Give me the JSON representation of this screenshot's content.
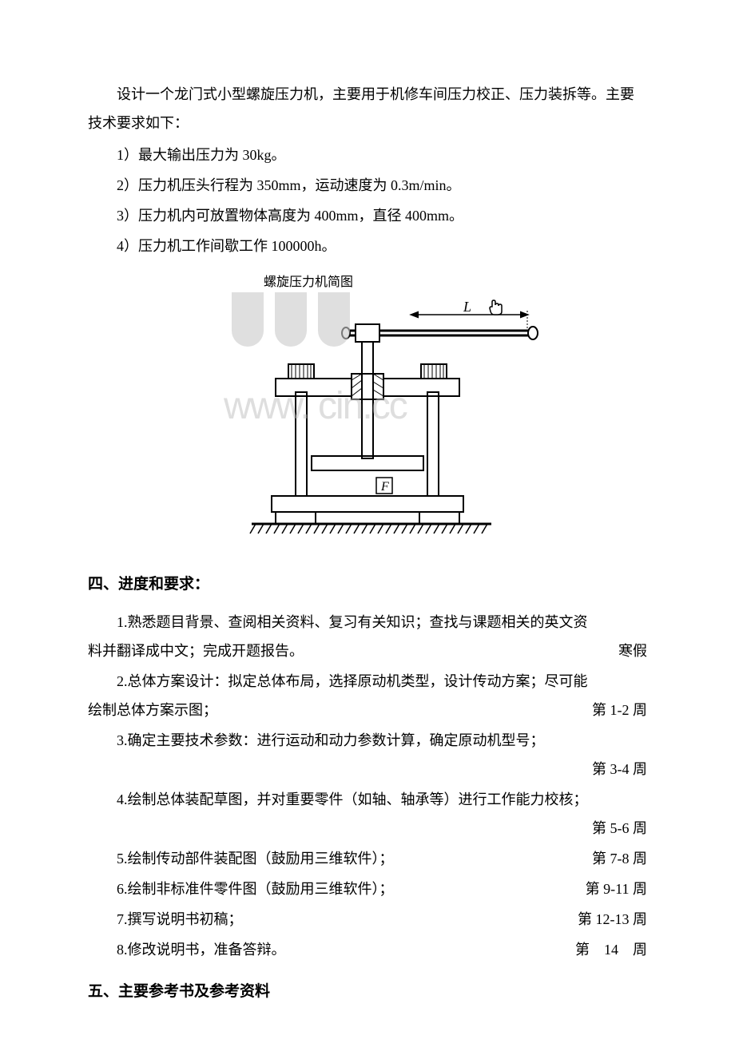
{
  "intro": {
    "para": "设计一个龙门式小型螺旋压力机，主要用于机修车间压力校正、压力装拆等。主要技术要求如下：",
    "specs": [
      "1）最大输出压力为 30kg。",
      "2）压力机压头行程为 350mm，运动速度为 0.3m/min。",
      "3）压力机内可放置物体高度为 400mm，直径 400mm。",
      "4）压力机工作间歇工作 100000h。"
    ]
  },
  "diagram": {
    "label": "螺旋压力机简图",
    "watermark": "www.   cin.cc",
    "label_L": "L",
    "label_F": "F",
    "stroke_color": "#000000",
    "watermark_color": "#bfbfbf"
  },
  "heading4": "四、进度和要求：",
  "schedule": [
    {
      "text_lines": [
        "1.熟悉题目背景、查阅相关资料、复习有关知识；查找与课题相关的英文资",
        "料并翻译成中文；完成开题报告。"
      ],
      "time": "寒假",
      "time_inline": true
    },
    {
      "text_lines": [
        "2.总体方案设计：拟定总体布局，选择原动机类型，设计传动方案；尽可能",
        "绘制总体方案示图；"
      ],
      "time": "第 1-2 周",
      "time_inline": true
    },
    {
      "text_lines": [
        "3.确定主要技术参数：进行运动和动力参数计算，确定原动机型号；"
      ],
      "time": "第 3-4 周",
      "time_inline": false
    },
    {
      "text_lines": [
        "4.绘制总体装配草图，并对重要零件（如轴、轴承等）进行工作能力校核；"
      ],
      "time": "第 5-6 周",
      "time_inline": false
    },
    {
      "text_lines": [
        "5.绘制传动部件装配图（鼓励用三维软件）；"
      ],
      "time": "第 7-8 周",
      "time_inline": true
    },
    {
      "text_lines": [
        "6.绘制非标准件零件图（鼓励用三维软件）；"
      ],
      "time": "第 9-11 周",
      "time_inline": true
    },
    {
      "text_lines": [
        "7.撰写说明书初稿；"
      ],
      "time": "第 12-13 周",
      "time_inline": true
    },
    {
      "text_lines": [
        "8.修改说明书，准备答辩。"
      ],
      "time": "第　14　周",
      "time_inline": true
    }
  ],
  "heading5": "五、主要参考书及参考资料"
}
